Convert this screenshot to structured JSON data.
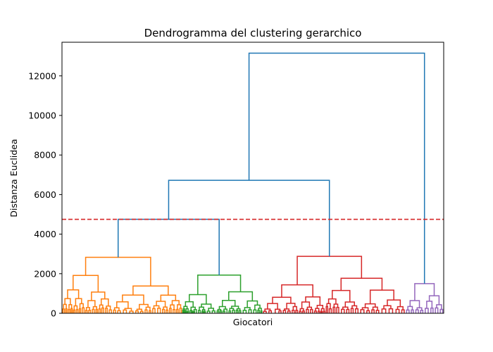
{
  "chart_data": {
    "type": "dendrogram",
    "title": "Dendrogramma del clustering gerarchico",
    "xlabel": "Giocatori",
    "ylabel": "Distanza Euclidea",
    "ylim": [
      0,
      13700
    ],
    "yticks": [
      0,
      2000,
      4000,
      6000,
      8000,
      10000,
      12000
    ],
    "xticks_visible": false,
    "grid": false,
    "cut_line": {
      "y": 4750,
      "color": "#d62728",
      "style": "dashed"
    },
    "link_color_above_cut": "#1f77b4",
    "clusters": [
      {
        "id": "orange",
        "color": "#ff7f0e",
        "x_range": [
          0,
          31.5
        ],
        "root_height": 2830
      },
      {
        "id": "green",
        "color": "#2ca02c",
        "x_range": [
          31.5,
          52.5
        ],
        "root_height": 1930
      },
      {
        "id": "red",
        "color": "#d62728",
        "x_range": [
          52.5,
          90
        ],
        "root_height": 2880
      },
      {
        "id": "purple",
        "color": "#9467bd",
        "x_range": [
          90,
          100
        ],
        "root_height": 1500
      }
    ],
    "upper_merges": [
      {
        "left": "orange",
        "right": "green",
        "height": 4750
      },
      {
        "left": "orange+green",
        "right": "red",
        "height": 6720
      },
      {
        "left": "orange+green+red",
        "right": "purple",
        "height": 13150
      }
    ]
  }
}
